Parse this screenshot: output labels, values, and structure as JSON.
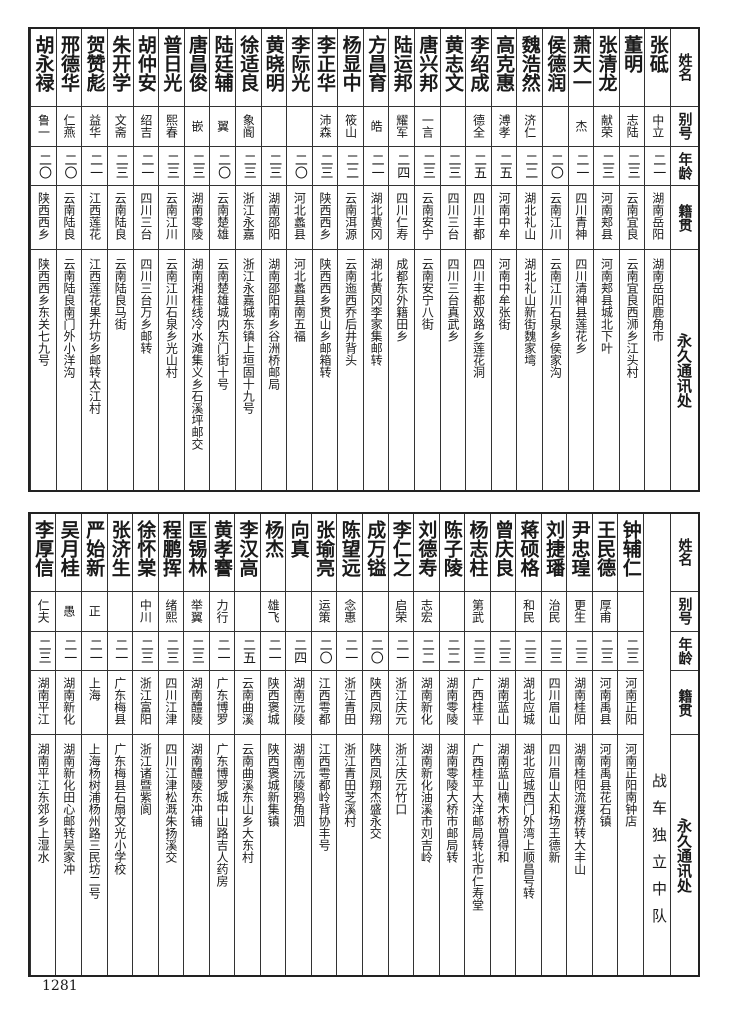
{
  "headers": {
    "name": "姓名",
    "alias": "别号",
    "age": "年龄",
    "origin": "籍贯",
    "address": "永久通讯处"
  },
  "top_table": [
    {
      "name": "张砥",
      "alias": "中立",
      "age": "二一",
      "origin": "湖南岳阳",
      "address": "湖南岳阳鹿角市"
    },
    {
      "name": "董明",
      "alias": "志陆",
      "age": "二三",
      "origin": "云南宜良",
      "address": "云南宜良西浉乡江头村"
    },
    {
      "name": "张清龙",
      "alias": "献荣",
      "age": "二三",
      "origin": "河南郏县",
      "address": "河南郏县城北下叶"
    },
    {
      "name": "萧天一",
      "alias": "杰",
      "age": "二一",
      "origin": "四川青神",
      "address": "四川清神县莲花乡"
    },
    {
      "name": "侯德润",
      "alias": "",
      "age": "二〇",
      "origin": "云南江川",
      "address": "云南江川石泉乡侯家沟"
    },
    {
      "name": "魏浩然",
      "alias": "济仁",
      "age": "二二",
      "origin": "湖北礼山",
      "address": "湖北礼山新街魏家塆"
    },
    {
      "name": "高克惠",
      "alias": "溥孝",
      "age": "二五",
      "origin": "河南中牟",
      "address": "河南中牟张街"
    },
    {
      "name": "李绍成",
      "alias": "德全",
      "age": "二五",
      "origin": "四川丰都",
      "address": "四川丰都双路乡莲花洞"
    },
    {
      "name": "黄志文",
      "alias": "",
      "age": "二三",
      "origin": "四川三台",
      "address": "四川三台真武乡"
    },
    {
      "name": "唐兴邦",
      "alias": "一言",
      "age": "二三",
      "origin": "云南安宁",
      "address": "云南安宁八街"
    },
    {
      "name": "陆运邦",
      "alias": "耀军",
      "age": "二四",
      "origin": "四川仁寿",
      "address": "成都东外籍田乡"
    },
    {
      "name": "方昌育",
      "alias": "皓",
      "age": "二一",
      "origin": "湖北黄冈",
      "address": "湖北黄冈李家集邮转"
    },
    {
      "name": "杨显中",
      "alias": "筱山",
      "age": "二二",
      "origin": "云南洱源",
      "address": "云南迤西乔后井背头"
    },
    {
      "name": "李正华",
      "alias": "沛森",
      "age": "二三",
      "origin": "陕西西乡",
      "address": "陕西西乡贯山乡邮箱转"
    },
    {
      "name": "李际光",
      "alias": "",
      "age": "二〇",
      "origin": "河北蠡县",
      "address": "河北蠡县南五福"
    },
    {
      "name": "黄晓明",
      "alias": "",
      "age": "二三",
      "origin": "湖南邵阳",
      "address": "湖南邵阳南乡谷洲桥邮局"
    },
    {
      "name": "徐适良",
      "alias": "象阍",
      "age": "二三",
      "origin": "浙江永嘉",
      "address": "浙江永嘉城东镇上垣固十九号"
    },
    {
      "name": "陆廷辅",
      "alias": "翼",
      "age": "二〇",
      "origin": "云南楚雄",
      "address": "云南楚雄城内东门街十号"
    },
    {
      "name": "唐昌俊",
      "alias": "嵌",
      "age": "二三",
      "origin": "湖南零陵",
      "address": "湖南湘桂线冷水滩集义乡石溪坪邮交"
    },
    {
      "name": "普日光",
      "alias": "熙春",
      "age": "二三",
      "origin": "云南江川",
      "address": "云南江川石泉乡光山村"
    },
    {
      "name": "胡仲安",
      "alias": "绍吉",
      "age": "二一",
      "origin": "四川三台",
      "address": "四川三台万乡邮转"
    },
    {
      "name": "朱开学",
      "alias": "文斋",
      "age": "二三",
      "origin": "云南陆良",
      "address": "云南陆良马街"
    },
    {
      "name": "贺赞彪",
      "alias": "益华",
      "age": "二一",
      "origin": "江西莲花",
      "address": "江西莲花果升坊乡邮转太江村"
    },
    {
      "name": "邢德华",
      "alias": "仁燕",
      "age": "二〇",
      "origin": "云南陆良",
      "address": "云南陆良南门外小洋沟"
    },
    {
      "name": "胡永禄",
      "alias": "鲁一",
      "age": "二〇",
      "origin": "陕西西乡",
      "address": "陕西西乡东关七九号"
    }
  ],
  "bottom_section_label": "战车独立中队",
  "bottom_table": [
    {
      "name": "钟辅仁",
      "alias": "",
      "age": "二三",
      "origin": "河南正阳",
      "address": "河南正阳南钟店"
    },
    {
      "name": "王民德",
      "alias": "厚甫",
      "age": "二三",
      "origin": "河南禹县",
      "address": "河南禹县花石镇"
    },
    {
      "name": "尹忠瑝",
      "alias": "更生",
      "age": "二三",
      "origin": "湖南桂阳",
      "address": "湖南桂阳流渡桥转大丰山"
    },
    {
      "name": "刘捷璠",
      "alias": "治民",
      "age": "二三",
      "origin": "四川眉山",
      "address": "四川眉山太和场王德新"
    },
    {
      "name": "蒋硕格",
      "alias": "和民",
      "age": "二三",
      "origin": "湖北应城",
      "address": "湖北应城西门外湾上顺昌号转"
    },
    {
      "name": "曾庆良",
      "alias": "",
      "age": "二三",
      "origin": "湖南蓝山",
      "address": "湖南蓝山楠木桥曾得和"
    },
    {
      "name": "杨志柱",
      "alias": "第武",
      "age": "二三",
      "origin": "广西桂平",
      "address": "广西桂平大洋邮局转北市仁寿堂"
    },
    {
      "name": "陈子陵",
      "alias": "",
      "age": "二二",
      "origin": "湖南零陵",
      "address": "湖南零陵大桥市邮局转"
    },
    {
      "name": "刘德寿",
      "alias": "志宏",
      "age": "二二",
      "origin": "湖南新化",
      "address": "湖南新化油溪市刘吉岭"
    },
    {
      "name": "李仁之",
      "alias": "启荣",
      "age": "二一",
      "origin": "浙江庆元",
      "address": "浙江庆元竹口"
    },
    {
      "name": "成万镒",
      "alias": "",
      "age": "二〇",
      "origin": "陕西凤翔",
      "address": "陕西凤翔杰盛永交"
    },
    {
      "name": "陈望远",
      "alias": "念惠",
      "age": "二一",
      "origin": "浙江青田",
      "address": "浙江青田芝溪村"
    },
    {
      "name": "张瑜亮",
      "alias": "运策",
      "age": "二〇",
      "origin": "江西雩都",
      "address": "江西雩都岭背协丰号"
    },
    {
      "name": "向真",
      "alias": "",
      "age": "二四",
      "origin": "湖南沅陵",
      "address": "湖南沅陵鸦角泗"
    },
    {
      "name": "杨杰",
      "alias": "雄飞",
      "age": "二一",
      "origin": "陕西褒城",
      "address": "陕西褒城新集镇"
    },
    {
      "name": "李汉高",
      "alias": "",
      "age": "二五",
      "origin": "云南曲溪",
      "address": "云南曲溪东山乡大东村"
    },
    {
      "name": "黄孝謇",
      "alias": "力行",
      "age": "二一",
      "origin": "广东博罗",
      "address": "广东博罗城中山路吉人药房"
    },
    {
      "name": "匡锡林",
      "alias": "举翼",
      "age": "二三",
      "origin": "湖南醴陵",
      "address": "湖南醴陵东冲铺"
    },
    {
      "name": "程鹏挥",
      "alias": "绪熙",
      "age": "二三",
      "origin": "四川江津",
      "address": "四川江津松溉朱扬溪交"
    },
    {
      "name": "徐怀棠",
      "alias": "中川",
      "age": "二三",
      "origin": "浙江富阳",
      "address": "浙江诸暨紫阆"
    },
    {
      "name": "张济生",
      "alias": "",
      "age": "二一",
      "origin": "广东梅县",
      "address": "广东梅县石扇文光小学校"
    },
    {
      "name": "严始新",
      "alias": "正",
      "age": "二一",
      "origin": "上海",
      "address": "上海杨树浦杨州路三民坊二号"
    },
    {
      "name": "吴月桂",
      "alias": "愚",
      "age": "二一",
      "origin": "湖南新化",
      "address": "湖南新化田心邮转吴家冲"
    },
    {
      "name": "李厚信",
      "alias": "仁夫",
      "age": "二三",
      "origin": "湖南平江",
      "address": "湖南平江东郊乡上湿水"
    }
  ],
  "page_number": "1281"
}
